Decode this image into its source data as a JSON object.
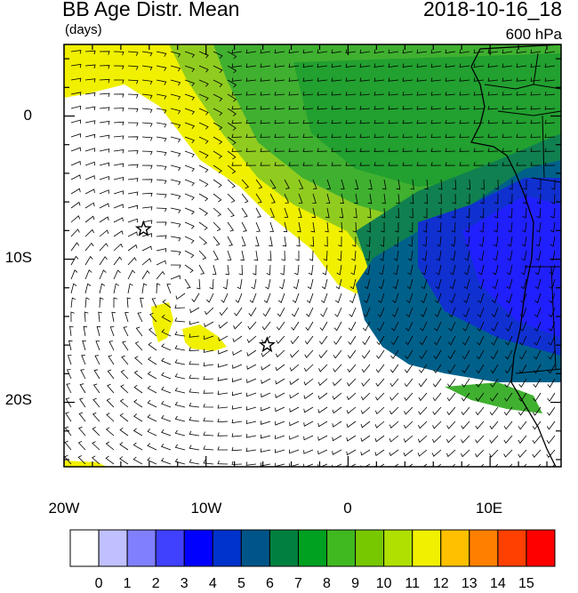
{
  "header": {
    "title": "BB Age Distr. Mean",
    "subtitle": "(days)",
    "timestamp": "2018-10-16_18",
    "level": "600 hPa"
  },
  "map": {
    "lat_ticks": [
      "0",
      "10S",
      "20S"
    ],
    "lon_ticks": [
      "20W",
      "10W",
      "0",
      "10E"
    ],
    "lon_range": [
      -20,
      15
    ],
    "lat_range": [
      -24.5,
      5
    ],
    "stations": [
      {
        "lon": -14.4,
        "lat": -7.9
      },
      {
        "lon": -5.7,
        "lat": -16.0
      }
    ]
  },
  "colorbar": {
    "labels": [
      "0",
      "1",
      "2",
      "3",
      "4",
      "5",
      "6",
      "7",
      "8",
      "9",
      "10",
      "11",
      "12",
      "13",
      "14",
      "15"
    ],
    "colors": [
      "#ffffff",
      "#c0c0ff",
      "#8080ff",
      "#4040ff",
      "#0000ff",
      "#0033cc",
      "#005588",
      "#008040",
      "#00a020",
      "#40b820",
      "#78c800",
      "#b0e000",
      "#f0f000",
      "#ffc000",
      "#ff8000",
      "#ff4000",
      "#ff0000"
    ]
  }
}
